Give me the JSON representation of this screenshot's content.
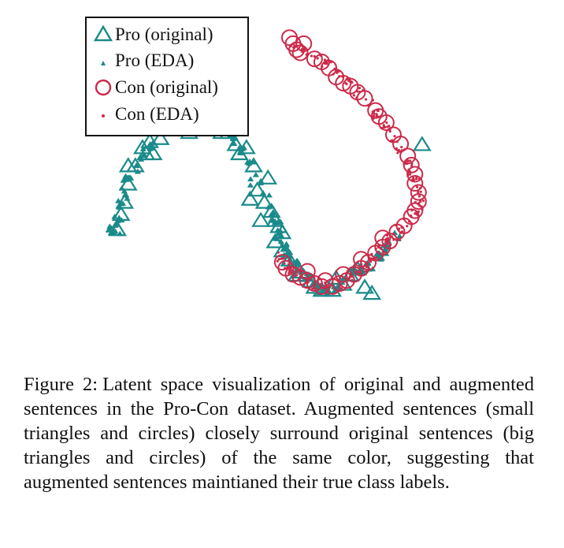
{
  "colors": {
    "pro": "#1a8a8a",
    "con": "#cc2a4a",
    "legend_border": "#111111"
  },
  "legend": {
    "placement": "top-left",
    "entries": [
      {
        "label": "Pro (original)",
        "marker": "big-triangle",
        "color": "#1a8a8a"
      },
      {
        "label": "Pro (EDA)",
        "marker": "small-triangle",
        "color": "#1a8a8a"
      },
      {
        "label": "Con (original)",
        "marker": "big-circle",
        "color": "#cc2a4a"
      },
      {
        "label": "Con (EDA)",
        "marker": "small-dot",
        "color": "#cc2a4a"
      }
    ]
  },
  "chart_data": {
    "type": "scatter",
    "title": "",
    "xlabel": "",
    "ylabel": "",
    "axes_visible": false,
    "grid": false,
    "xlim": [
      0,
      100
    ],
    "ylim": [
      0,
      100
    ],
    "series": [
      {
        "name": "Pro (original)",
        "marker": "big-triangle",
        "color": "#1a8a8a",
        "points": [
          [
            2,
            35
          ],
          [
            3,
            40
          ],
          [
            4,
            44
          ],
          [
            5,
            50
          ],
          [
            5,
            56
          ],
          [
            7,
            56
          ],
          [
            9,
            62
          ],
          [
            10,
            60
          ],
          [
            11,
            64
          ],
          [
            12,
            60
          ],
          [
            14,
            65
          ],
          [
            16,
            70
          ],
          [
            18,
            72
          ],
          [
            20,
            70
          ],
          [
            22,
            67
          ],
          [
            24,
            69
          ],
          [
            27,
            68
          ],
          [
            29,
            69
          ],
          [
            31,
            67
          ],
          [
            33,
            67
          ],
          [
            35,
            63
          ],
          [
            36,
            60
          ],
          [
            38,
            62
          ],
          [
            40,
            56
          ],
          [
            39,
            45
          ],
          [
            41,
            48
          ],
          [
            43,
            44
          ],
          [
            45,
            41
          ],
          [
            46,
            38
          ],
          [
            47,
            36
          ],
          [
            46,
            31
          ],
          [
            48,
            28
          ],
          [
            50,
            25
          ],
          [
            53,
            21
          ],
          [
            56,
            18
          ],
          [
            59,
            15
          ],
          [
            62,
            15
          ],
          [
            65,
            17
          ],
          [
            67,
            20
          ],
          [
            69,
            22
          ],
          [
            71,
            16
          ],
          [
            73,
            14
          ],
          [
            52,
            20
          ],
          [
            57,
            16
          ],
          [
            63,
            19
          ],
          [
            42,
            38
          ],
          [
            44,
            52
          ],
          [
            87,
            63
          ],
          [
            48,
            34
          ]
        ]
      },
      {
        "name": "Pro (EDA)",
        "marker": "small-triangle",
        "color": "#1a8a8a",
        "cloud": [
          [
            1,
            35
          ],
          [
            2,
            38
          ],
          [
            3,
            43
          ],
          [
            4,
            47
          ],
          [
            5,
            52
          ],
          [
            7,
            55
          ],
          [
            9,
            59
          ],
          [
            11,
            62
          ],
          [
            13,
            66
          ],
          [
            15,
            69
          ],
          [
            17,
            71
          ],
          [
            19,
            72
          ],
          [
            22,
            68
          ],
          [
            25,
            69
          ],
          [
            28,
            69
          ],
          [
            31,
            68
          ],
          [
            34,
            65
          ],
          [
            37,
            61
          ],
          [
            39,
            57
          ],
          [
            41,
            51
          ],
          [
            43,
            46
          ],
          [
            45,
            42
          ],
          [
            46,
            38
          ],
          [
            47,
            33
          ],
          [
            49,
            28
          ],
          [
            51,
            24
          ],
          [
            54,
            20
          ],
          [
            57,
            17
          ],
          [
            60,
            15
          ],
          [
            63,
            16
          ],
          [
            66,
            18
          ],
          [
            69,
            21
          ],
          [
            72,
            23
          ],
          [
            75,
            26
          ],
          [
            77,
            29
          ],
          [
            80,
            33
          ]
        ],
        "cloud_count": 230
      },
      {
        "name": "Con (original)",
        "marker": "big-circle",
        "color": "#cc2a4a",
        "points": [
          [
            50,
            98
          ],
          [
            51,
            96
          ],
          [
            52,
            94
          ],
          [
            54,
            96
          ],
          [
            53,
            93
          ],
          [
            57,
            91
          ],
          [
            59,
            90
          ],
          [
            61,
            88
          ],
          [
            63,
            85
          ],
          [
            65,
            83
          ],
          [
            67,
            82
          ],
          [
            69,
            80
          ],
          [
            71,
            78
          ],
          [
            74,
            74
          ],
          [
            75,
            72
          ],
          [
            77,
            70
          ],
          [
            79,
            66
          ],
          [
            81,
            63
          ],
          [
            83,
            59
          ],
          [
            84,
            56
          ],
          [
            85,
            53
          ],
          [
            85,
            50
          ],
          [
            86,
            47
          ],
          [
            86,
            44
          ],
          [
            85,
            41
          ],
          [
            84,
            39
          ],
          [
            82,
            36
          ],
          [
            80,
            34
          ],
          [
            78,
            31
          ],
          [
            76,
            29
          ],
          [
            74,
            27
          ],
          [
            72,
            24
          ],
          [
            70,
            22
          ],
          [
            68,
            20
          ],
          [
            66,
            18
          ],
          [
            64,
            17
          ],
          [
            62,
            16
          ],
          [
            59,
            16
          ],
          [
            57,
            17
          ],
          [
            55,
            18
          ],
          [
            53,
            19
          ],
          [
            51,
            20
          ],
          [
            49,
            22
          ],
          [
            48,
            24
          ],
          [
            55,
            21
          ],
          [
            60,
            18
          ],
          [
            65,
            20
          ],
          [
            70,
            25
          ],
          [
            76,
            32
          ]
        ]
      },
      {
        "name": "Con (EDA)",
        "marker": "small-dot",
        "color": "#cc2a4a",
        "cloud": [
          [
            51,
            96
          ],
          [
            54,
            94
          ],
          [
            57,
            92
          ],
          [
            60,
            90
          ],
          [
            63,
            87
          ],
          [
            66,
            84
          ],
          [
            69,
            80
          ],
          [
            72,
            77
          ],
          [
            74,
            73
          ],
          [
            77,
            69
          ],
          [
            79,
            65
          ],
          [
            81,
            61
          ],
          [
            83,
            57
          ],
          [
            84,
            54
          ],
          [
            85,
            51
          ],
          [
            86,
            47
          ],
          [
            86,
            43
          ],
          [
            85,
            40
          ],
          [
            83,
            37
          ],
          [
            81,
            35
          ],
          [
            79,
            32
          ],
          [
            77,
            30
          ],
          [
            75,
            28
          ],
          [
            73,
            25
          ],
          [
            70,
            22
          ],
          [
            67,
            19
          ],
          [
            64,
            17
          ],
          [
            61,
            16
          ],
          [
            58,
            16
          ],
          [
            55,
            18
          ],
          [
            52,
            20
          ],
          [
            50,
            22
          ],
          [
            48,
            25
          ]
        ],
        "cloud_count": 260
      }
    ]
  },
  "caption": {
    "label": "Figure 2:",
    "text": "Latent space visualization of original and augmented sentences in the Pro-Con dataset. Augmented sentences (small triangles and circles) closely surround original sentences (big triangles and circles) of the same color, suggesting that augmented sentences maintianed their true class labels."
  }
}
